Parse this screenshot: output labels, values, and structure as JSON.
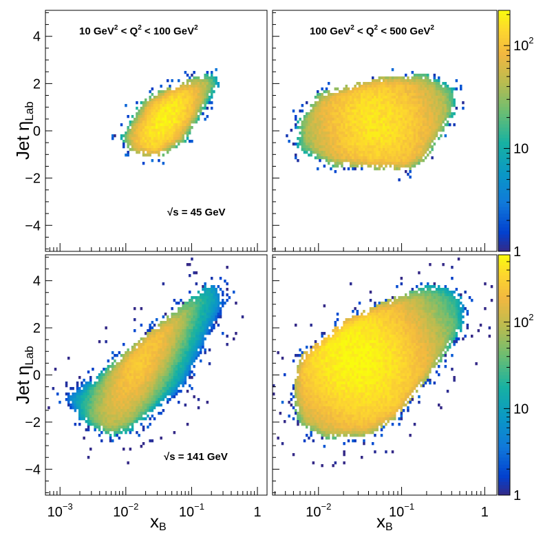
{
  "chart_data": {
    "type": "heatmap",
    "layout": "2x2 grid",
    "xlabel": "x",
    "xlabel_sub": "B",
    "ylabel": "Jet η",
    "ylabel_sub": "Lab",
    "x_scale": "log",
    "ylim": [
      -5.1,
      5.1
    ],
    "y_ticks": [
      {
        "value": -4,
        "label": "−4"
      },
      {
        "value": -2,
        "label": "−2"
      },
      {
        "value": 0,
        "label": "0"
      },
      {
        "value": 2,
        "label": "2"
      },
      {
        "value": 4,
        "label": "4"
      }
    ],
    "colorbar": {
      "scale": "log",
      "ticks": [
        {
          "value": 1,
          "base": "1",
          "exp": ""
        },
        {
          "value": 10,
          "base": "10",
          "exp": ""
        },
        {
          "value": 100,
          "base": "10",
          "exp": "2"
        }
      ]
    },
    "q2_bins": [
      {
        "base": "10 GeV",
        "exp1": "2",
        "mid": " < Q",
        "exp2": "2",
        "tail": " < 100 GeV",
        "exp3": "2"
      },
      {
        "base": "100 GeV",
        "exp1": "2",
        "mid": " < Q",
        "exp2": "2",
        "tail": " < 500 GeV",
        "exp3": "2"
      }
    ],
    "energies": [
      {
        "sqrt": "√",
        "s": "s = 45 GeV"
      },
      {
        "sqrt": "√",
        "s": "s = 141 GeV"
      }
    ],
    "panels": [
      {
        "row": 0,
        "col": 0,
        "xlim": [
          0.0006,
          1.4
        ],
        "cmax": 220,
        "x_ticks": [],
        "distribution": {
          "poly": [
            [
              0.012,
              -0.9
            ],
            [
              0.03,
              -1.2
            ],
            [
              0.08,
              -0.5
            ],
            [
              0.26,
              1.9
            ],
            [
              0.24,
              2.35
            ],
            [
              0.15,
              2.4
            ],
            [
              0.018,
              1.4
            ],
            [
              0.008,
              -0.3
            ]
          ],
          "core": {
            "logx": -1.4,
            "eta": 0.45,
            "peak": 190,
            "su": 0.55,
            "sv": 0.25,
            "angle": 55
          }
        }
      },
      {
        "row": 0,
        "col": 1,
        "xlim": [
          0.0028,
          1.4
        ],
        "cmax": 220,
        "x_ticks": [],
        "distribution": {
          "poly": [
            [
              0.0055,
              -0.8
            ],
            [
              0.015,
              -1.5
            ],
            [
              0.12,
              -1.7
            ],
            [
              0.2,
              -1.2
            ],
            [
              0.45,
              0.8
            ],
            [
              0.45,
              1.8
            ],
            [
              0.2,
              2.4
            ],
            [
              0.06,
              2.3
            ],
            [
              0.01,
              1.6
            ],
            [
              0.0055,
              0.4
            ]
          ],
          "core": {
            "logx": -1.3,
            "eta": 0.35,
            "peak": 160,
            "su": 0.55,
            "sv": 0.6,
            "angle": 30
          }
        }
      },
      {
        "row": 1,
        "col": 0,
        "xlim": [
          0.0006,
          1.4
        ],
        "cmax": 600,
        "x_ticks": [
          {
            "value": 0.001,
            "base": "10",
            "exp": "−3"
          },
          {
            "value": 0.01,
            "base": "10",
            "exp": "−2"
          },
          {
            "value": 0.1,
            "base": "10",
            "exp": "−1"
          },
          {
            "value": 1,
            "base": "1",
            "exp": ""
          }
        ],
        "distribution": {
          "poly": [
            [
              0.0012,
              -1.1
            ],
            [
              0.002,
              -1.9
            ],
            [
              0.006,
              -2.6
            ],
            [
              0.012,
              -2.4
            ],
            [
              0.08,
              -0.5
            ],
            [
              0.32,
              3.0
            ],
            [
              0.28,
              3.75
            ],
            [
              0.18,
              3.9
            ],
            [
              0.02,
              1.7
            ],
            [
              0.003,
              -0.2
            ],
            [
              0.0012,
              -0.8
            ]
          ],
          "core": {
            "logx": -1.75,
            "eta": 0.7,
            "peak": 260,
            "su": 0.8,
            "sv": 0.25,
            "angle": 62
          }
        }
      },
      {
        "row": 1,
        "col": 1,
        "xlim": [
          0.0028,
          1.4
        ],
        "cmax": 600,
        "x_ticks": [
          {
            "value": 0.01,
            "base": "10",
            "exp": "−2"
          },
          {
            "value": 0.1,
            "base": "10",
            "exp": "−1"
          },
          {
            "value": 1,
            "base": "1",
            "exp": ""
          }
        ],
        "distribution": {
          "poly": [
            [
              0.005,
              -1.2
            ],
            [
              0.006,
              -2.2
            ],
            [
              0.012,
              -2.7
            ],
            [
              0.04,
              -2.6
            ],
            [
              0.09,
              -1.8
            ],
            [
              0.25,
              0.2
            ],
            [
              0.55,
              2.0
            ],
            [
              0.55,
              3.3
            ],
            [
              0.35,
              3.75
            ],
            [
              0.2,
              3.8
            ],
            [
              0.08,
              3.3
            ],
            [
              0.02,
              2.3
            ],
            [
              0.0065,
              0.9
            ],
            [
              0.005,
              0.0
            ]
          ],
          "core": {
            "logx": -1.55,
            "eta": 0.7,
            "peak": 560,
            "su": 0.6,
            "sv": 0.7,
            "angle": 35
          }
        }
      }
    ]
  }
}
